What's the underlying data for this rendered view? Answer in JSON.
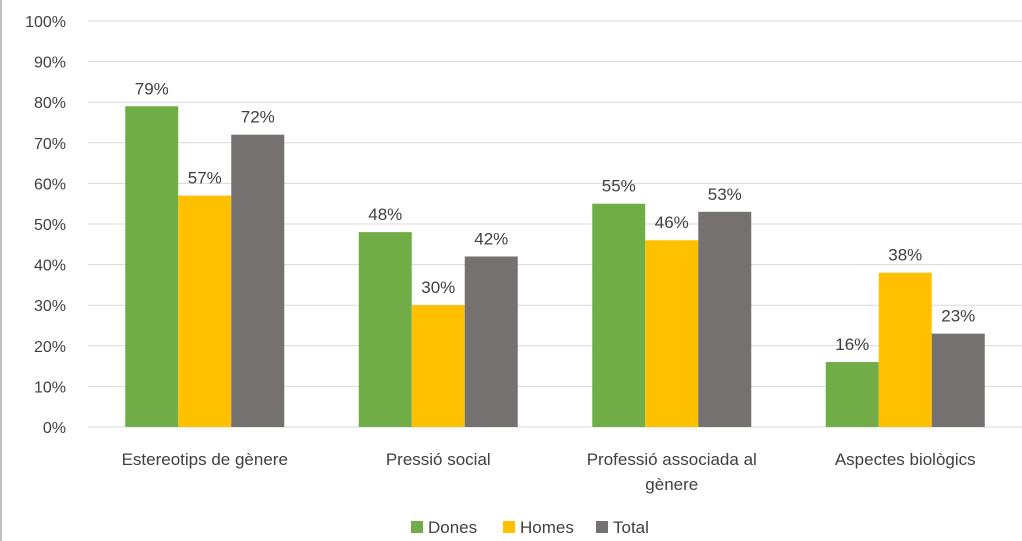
{
  "chart_data": {
    "type": "bar",
    "categories": [
      [
        "Estereotips de gènere"
      ],
      [
        "Pressió social"
      ],
      [
        "Professió associada al",
        "gènere"
      ],
      [
        "Aspectes biològics"
      ]
    ],
    "series": [
      {
        "name": "Dones",
        "color": "#70ad47",
        "values": [
          79,
          48,
          55,
          16
        ]
      },
      {
        "name": "Homes",
        "color": "#ffc000",
        "values": [
          57,
          30,
          46,
          38
        ]
      },
      {
        "name": "Total",
        "color": "#767171",
        "values": [
          72,
          42,
          53,
          23
        ]
      }
    ],
    "value_suffix": "%",
    "ylim": [
      0,
      100
    ],
    "ytick_step": 10,
    "grid": true,
    "legend_position": "bottom",
    "title": "",
    "xlabel": "",
    "ylabel": ""
  }
}
